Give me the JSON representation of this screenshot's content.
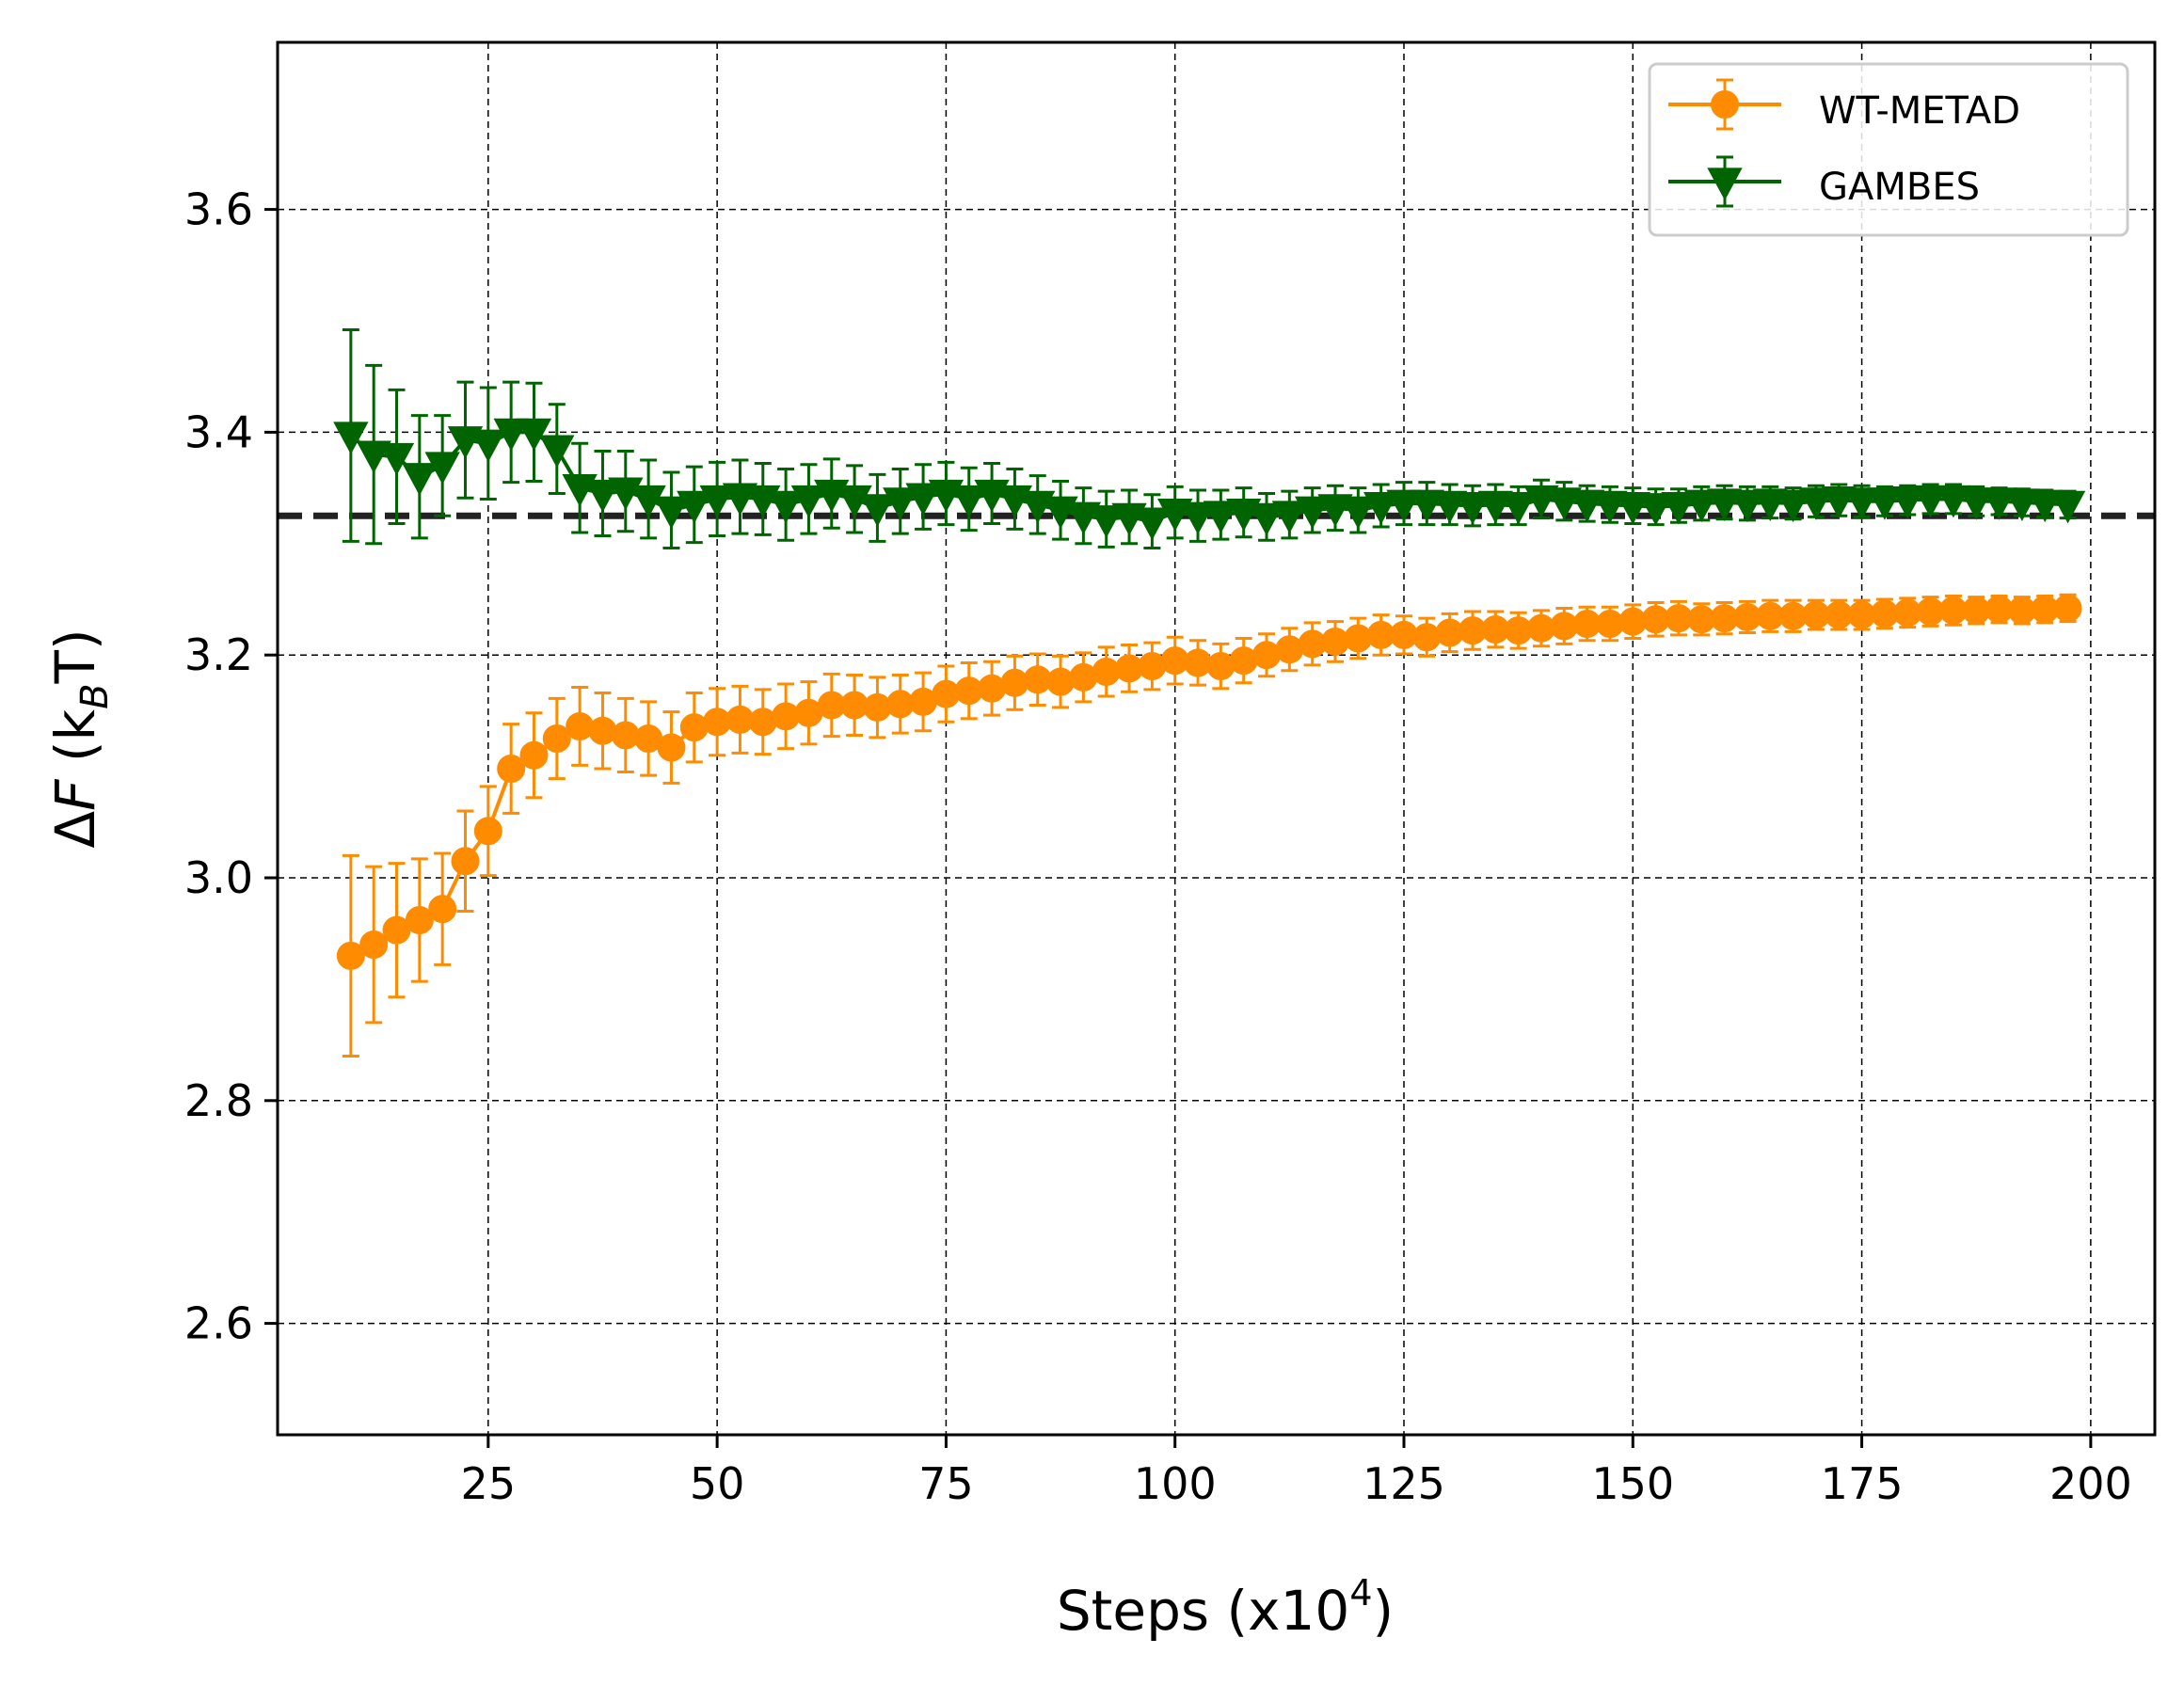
{
  "chart_data": {
    "type": "line",
    "title": "",
    "xlabel": "Steps (x10^4)",
    "xlabel_parts": {
      "base": "Steps (x10",
      "sup": "4",
      "close": ")"
    },
    "ylabel": "ΔF (k_B T)",
    "ylabel_parts": {
      "delta": "Δ",
      "var": "F",
      "open": " (k",
      "sub": "B",
      "close": "T)"
    },
    "xlim": [
      2,
      207
    ],
    "ylim": [
      2.5,
      3.75
    ],
    "xticks": [
      25,
      50,
      75,
      100,
      125,
      150,
      175,
      200
    ],
    "xtick_labels": [
      "25",
      "50",
      "75",
      "100",
      "125",
      "150",
      "175",
      "200"
    ],
    "yticks": [
      2.6,
      2.8,
      3.0,
      3.2,
      3.4,
      3.6
    ],
    "ytick_labels": [
      "2.6",
      "2.8",
      "3.0",
      "3.2",
      "3.4",
      "3.6"
    ],
    "grid": true,
    "legend_position": "top-right",
    "reference_line": {
      "y": 3.325,
      "color": "#222222",
      "style": "dashed"
    },
    "series": [
      {
        "name": "WT-METAD",
        "color": "#ff8c00",
        "marker": "circle",
        "x": [
          10,
          12.5,
          15,
          17.5,
          20,
          22.5,
          25,
          27.5,
          30,
          32.5,
          35,
          37.5,
          40,
          42.5,
          45,
          47.5,
          50,
          52.5,
          55,
          57.5,
          60,
          62.5,
          65,
          67.5,
          70,
          72.5,
          75,
          77.5,
          80,
          82.5,
          85,
          87.5,
          90,
          92.5,
          95,
          97.5,
          100,
          102.5,
          105,
          107.5,
          110,
          112.5,
          115,
          117.5,
          120,
          122.5,
          125,
          127.5,
          130,
          132.5,
          135,
          137.5,
          140,
          142.5,
          145,
          147.5,
          150,
          152.5,
          155,
          157.5,
          160,
          162.5,
          165,
          167.5,
          170,
          172.5,
          175,
          177.5,
          180,
          182.5,
          185,
          187.5,
          190,
          192.5,
          195,
          197.5
        ],
        "y": [
          2.93,
          2.94,
          2.953,
          2.962,
          2.972,
          3.015,
          3.042,
          3.098,
          3.11,
          3.125,
          3.136,
          3.132,
          3.128,
          3.125,
          3.117,
          3.135,
          3.14,
          3.142,
          3.14,
          3.145,
          3.148,
          3.155,
          3.155,
          3.153,
          3.156,
          3.158,
          3.165,
          3.168,
          3.17,
          3.175,
          3.178,
          3.176,
          3.18,
          3.185,
          3.188,
          3.19,
          3.195,
          3.193,
          3.19,
          3.195,
          3.2,
          3.205,
          3.21,
          3.212,
          3.215,
          3.218,
          3.218,
          3.216,
          3.22,
          3.222,
          3.223,
          3.222,
          3.224,
          3.226,
          3.228,
          3.228,
          3.23,
          3.232,
          3.233,
          3.232,
          3.233,
          3.234,
          3.235,
          3.235,
          3.236,
          3.236,
          3.236,
          3.237,
          3.238,
          3.239,
          3.24,
          3.24,
          3.241,
          3.24,
          3.241,
          3.242
        ],
        "err": [
          0.09,
          0.07,
          0.06,
          0.055,
          0.05,
          0.045,
          0.04,
          0.04,
          0.038,
          0.036,
          0.035,
          0.034,
          0.033,
          0.033,
          0.032,
          0.031,
          0.03,
          0.03,
          0.029,
          0.029,
          0.028,
          0.028,
          0.027,
          0.027,
          0.026,
          0.026,
          0.025,
          0.025,
          0.024,
          0.024,
          0.023,
          0.023,
          0.022,
          0.022,
          0.021,
          0.021,
          0.021,
          0.02,
          0.02,
          0.02,
          0.019,
          0.019,
          0.019,
          0.018,
          0.018,
          0.018,
          0.017,
          0.017,
          0.017,
          0.017,
          0.016,
          0.016,
          0.016,
          0.016,
          0.015,
          0.015,
          0.015,
          0.015,
          0.015,
          0.014,
          0.014,
          0.014,
          0.014,
          0.014,
          0.013,
          0.013,
          0.013,
          0.013,
          0.013,
          0.013,
          0.013,
          0.012,
          0.012,
          0.012,
          0.012,
          0.012
        ]
      },
      {
        "name": "GAMBES",
        "color": "#006400",
        "marker": "triangle-down",
        "x": [
          10,
          12.5,
          15,
          17.5,
          20,
          22.5,
          25,
          27.5,
          30,
          32.5,
          35,
          37.5,
          40,
          42.5,
          45,
          47.5,
          50,
          52.5,
          55,
          57.5,
          60,
          62.5,
          65,
          67.5,
          70,
          72.5,
          75,
          77.5,
          80,
          82.5,
          85,
          87.5,
          90,
          92.5,
          95,
          97.5,
          100,
          102.5,
          105,
          107.5,
          110,
          112.5,
          115,
          117.5,
          120,
          122.5,
          125,
          127.5,
          130,
          132.5,
          135,
          137.5,
          140,
          142.5,
          145,
          147.5,
          150,
          152.5,
          155,
          157.5,
          160,
          162.5,
          165,
          167.5,
          170,
          172.5,
          175,
          177.5,
          180,
          182.5,
          185,
          187.5,
          190,
          192.5,
          195,
          197.5
        ],
        "y": [
          3.397,
          3.38,
          3.378,
          3.36,
          3.37,
          3.393,
          3.39,
          3.4,
          3.4,
          3.385,
          3.35,
          3.345,
          3.347,
          3.34,
          3.33,
          3.335,
          3.34,
          3.342,
          3.34,
          3.335,
          3.34,
          3.345,
          3.34,
          3.332,
          3.338,
          3.342,
          3.345,
          3.34,
          3.345,
          3.34,
          3.335,
          3.33,
          3.325,
          3.322,
          3.324,
          3.32,
          3.328,
          3.325,
          3.326,
          3.328,
          3.324,
          3.326,
          3.33,
          3.332,
          3.33,
          3.334,
          3.336,
          3.336,
          3.335,
          3.334,
          3.335,
          3.334,
          3.34,
          3.338,
          3.336,
          3.335,
          3.334,
          3.333,
          3.334,
          3.336,
          3.337,
          3.336,
          3.337,
          3.336,
          3.338,
          3.339,
          3.338,
          3.338,
          3.339,
          3.34,
          3.34,
          3.338,
          3.338,
          3.337,
          3.336,
          3.335
        ],
        "err": [
          0.095,
          0.08,
          0.06,
          0.055,
          0.045,
          0.052,
          0.05,
          0.045,
          0.044,
          0.04,
          0.04,
          0.038,
          0.036,
          0.035,
          0.034,
          0.034,
          0.033,
          0.033,
          0.032,
          0.032,
          0.031,
          0.031,
          0.03,
          0.03,
          0.029,
          0.029,
          0.028,
          0.028,
          0.027,
          0.027,
          0.026,
          0.026,
          0.025,
          0.025,
          0.024,
          0.024,
          0.023,
          0.023,
          0.022,
          0.022,
          0.021,
          0.021,
          0.02,
          0.02,
          0.02,
          0.019,
          0.019,
          0.019,
          0.018,
          0.018,
          0.018,
          0.017,
          0.017,
          0.017,
          0.016,
          0.016,
          0.016,
          0.016,
          0.015,
          0.015,
          0.015,
          0.015,
          0.014,
          0.014,
          0.014,
          0.014,
          0.014,
          0.013,
          0.013,
          0.013,
          0.013,
          0.013,
          0.012,
          0.012,
          0.012,
          0.012
        ]
      }
    ]
  }
}
